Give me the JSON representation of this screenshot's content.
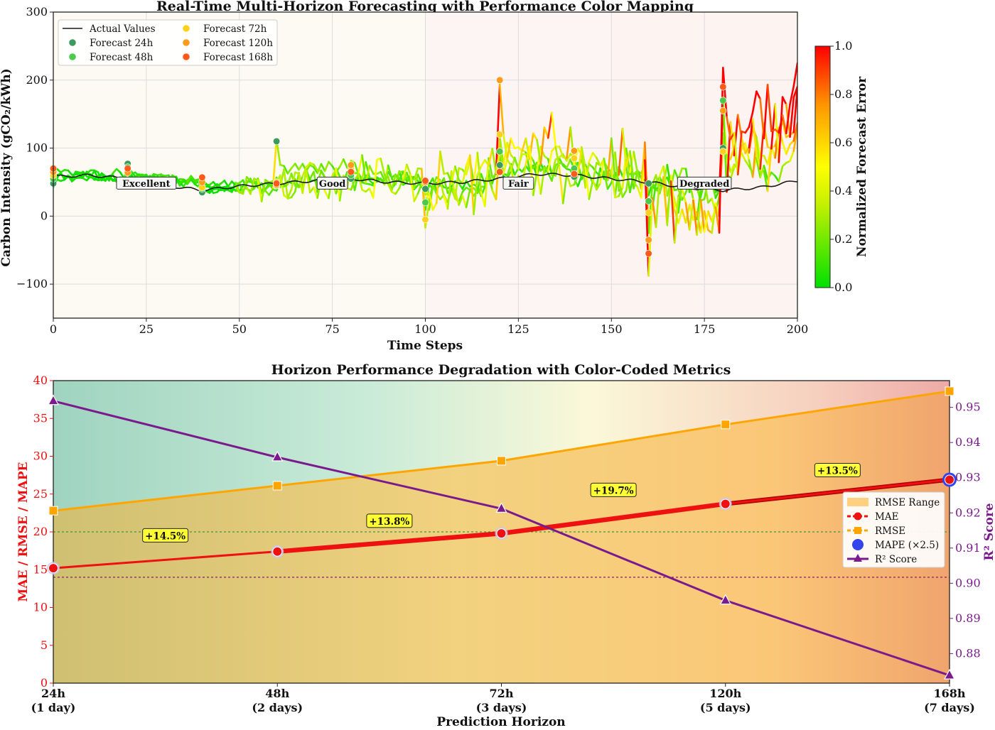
{
  "chart_data": [
    {
      "type": "line",
      "title": "Real-Time Multi-Horizon Forecasting with Performance Color Mapping",
      "xlabel": "Time Steps",
      "ylabel": "Carbon Intensity (gCO₂/kWh)",
      "xlim": [
        0,
        200
      ],
      "ylim": [
        -150,
        300
      ],
      "x_ticks": [
        0,
        25,
        50,
        75,
        100,
        125,
        150,
        175,
        200
      ],
      "y_ticks": [
        -100,
        0,
        100,
        200,
        300
      ],
      "x_tick_labels": [
        "0",
        "25",
        "50",
        "75",
        "100",
        "125",
        "150",
        "175",
        "200"
      ],
      "y_tick_labels": [
        "−100",
        "0",
        "100",
        "200",
        "300"
      ],
      "grid": true,
      "legend_position": "upper-left",
      "legend": [
        "Actual Values",
        "Forecast 24h",
        "Forecast 48h",
        "Forecast 72h",
        "Forecast 120h",
        "Forecast 168h"
      ],
      "colorbar": {
        "label": "Normalized Forecast Error",
        "ticks": [
          "0.0",
          "0.2",
          "0.4",
          "0.6",
          "0.8",
          "1.0"
        ],
        "range": [
          0,
          1
        ],
        "colors": [
          "#00e000",
          "#ffff00",
          "#ff8000",
          "#ff0000"
        ]
      },
      "zones": [
        {
          "label": "Excellent",
          "from": 0,
          "to": 50,
          "at": 25
        },
        {
          "label": "Good",
          "from": 50,
          "to": 100,
          "at": 75
        },
        {
          "label": "Fair",
          "from": 100,
          "to": 150,
          "at": 125
        },
        {
          "label": "Degraded",
          "from": 150,
          "to": 200,
          "at": 175
        }
      ],
      "actual": {
        "name": "Actual Values",
        "x": [
          0,
          10,
          20,
          30,
          40,
          50,
          60,
          70,
          80,
          90,
          100,
          110,
          120,
          130,
          140,
          150,
          160,
          170,
          180,
          190,
          200
        ],
        "y": [
          58,
          60,
          55,
          45,
          38,
          44,
          48,
          52,
          55,
          50,
          48,
          50,
          55,
          62,
          60,
          55,
          50,
          42,
          38,
          42,
          52
        ]
      },
      "series": [
        {
          "name": "Forecast 24h",
          "color": "#3c9a5f",
          "points_x": [
            0,
            20,
            40,
            60,
            80,
            100,
            120,
            140,
            160,
            180
          ],
          "points_y": [
            48,
            77,
            35,
            110,
            55,
            40,
            75,
            58,
            48,
            100
          ]
        },
        {
          "name": "Forecast 48h",
          "color": "#4cc94c",
          "points_x": [
            0,
            20,
            40,
            60,
            80,
            100,
            120,
            140,
            160,
            180
          ],
          "points_y": [
            55,
            72,
            40,
            45,
            60,
            20,
            95,
            70,
            22,
            170
          ]
        },
        {
          "name": "Forecast 72h",
          "color": "#ffd11a",
          "points_x": [
            0,
            20,
            40,
            60,
            80,
            100,
            120,
            140,
            160,
            180
          ],
          "points_y": [
            60,
            68,
            42,
            50,
            70,
            -5,
            120,
            85,
            5,
            95
          ]
        },
        {
          "name": "Forecast 120h",
          "color": "#ff9a1a",
          "points_x": [
            0,
            20,
            40,
            60,
            80,
            100,
            120,
            140,
            160,
            180
          ],
          "points_y": [
            65,
            64,
            50,
            46,
            75,
            50,
            200,
            96,
            -35,
            155
          ]
        },
        {
          "name": "Forecast 168h",
          "color": "#ff5a1a",
          "points_x": [
            0,
            20,
            40,
            60,
            80,
            100,
            120,
            140,
            160,
            180
          ],
          "points_y": [
            70,
            70,
            57,
            48,
            65,
            52,
            65,
            62,
            -55,
            190
          ]
        }
      ]
    },
    {
      "type": "line",
      "title": "Horizon Performance Degradation with Color-Coded Metrics",
      "xlabel": "Prediction Horizon",
      "ylabel": "MAE / RMSE / MAPE",
      "y2label": "R² Score",
      "categories": [
        "24h\n(1 day)",
        "48h\n(2 days)",
        "72h\n(3 days)",
        "120h\n(5 days)",
        "168h\n(7 days)"
      ],
      "category_lines": [
        [
          "24h",
          "(1 day)"
        ],
        [
          "48h",
          "(2 days)"
        ],
        [
          "72h",
          "(3 days)"
        ],
        [
          "120h",
          "(5 days)"
        ],
        [
          "168h",
          "(7 days)"
        ]
      ],
      "ylim": [
        0,
        40
      ],
      "y_ticks": [
        0,
        5,
        10,
        15,
        20,
        25,
        30,
        35,
        40
      ],
      "y2lim": [
        0.8716,
        0.9576
      ],
      "y2_ticks": [
        0.88,
        0.89,
        0.9,
        0.91,
        0.92,
        0.93,
        0.94,
        0.95
      ],
      "y2_tick_labels": [
        "0.88",
        "0.89",
        "0.90",
        "0.91",
        "0.92",
        "0.93",
        "0.94",
        "0.95"
      ],
      "reference_lines": [
        {
          "axis": "left",
          "value": 20,
          "color": "#3a9a3a"
        },
        {
          "axis": "left",
          "value": 14,
          "color": "#8a1a6a"
        }
      ],
      "legend_position": "center-right",
      "legend": [
        "RMSE Range",
        "MAE",
        "RMSE",
        "MAPE (×2.5)",
        "R² Score"
      ],
      "series": [
        {
          "name": "MAE",
          "color": "#ee1111",
          "values": [
            15.2,
            17.4,
            19.8,
            23.7,
            26.9
          ]
        },
        {
          "name": "RMSE",
          "color": "#ffa500",
          "values": [
            22.8,
            26.1,
            29.4,
            34.2,
            38.6
          ]
        },
        {
          "name": "MAPE (×2.5)",
          "color": "#3344ee",
          "values": [
            15.2,
            17.4,
            19.8,
            23.7,
            26.9
          ]
        },
        {
          "name": "R² Score",
          "color": "#7a1a8c",
          "axis": "right",
          "values": [
            0.9518,
            0.9358,
            0.9212,
            0.8951,
            0.8738
          ]
        }
      ],
      "annotations": [
        "+14.5%",
        "+13.8%",
        "+19.7%",
        "+13.5%"
      ]
    }
  ]
}
